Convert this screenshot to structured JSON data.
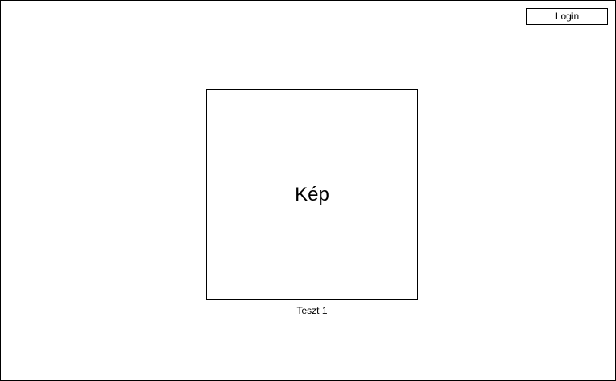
{
  "header": {
    "login_label": "Login"
  },
  "main": {
    "image_placeholder_label": "Kép",
    "caption": "Teszt 1"
  },
  "colors": {
    "border": "#000000",
    "background": "#ffffff",
    "text": "#000000"
  }
}
